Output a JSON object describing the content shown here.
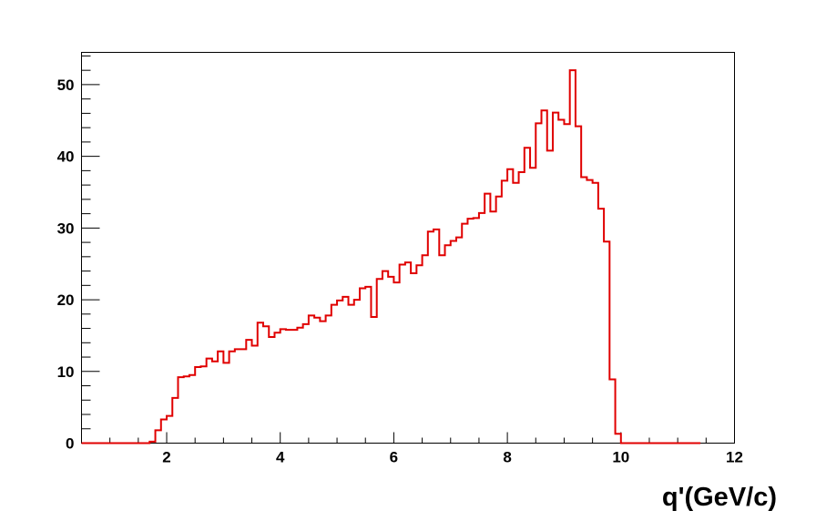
{
  "chart_data": {
    "type": "histogram",
    "xlabel": "q'(GeV/c)",
    "ylabel": "",
    "title": "",
    "xlim": [
      0.5,
      12
    ],
    "ylim": [
      0,
      54.5
    ],
    "grid": false,
    "series_color": "#e00000",
    "x_ticks": [
      2,
      4,
      6,
      8,
      10,
      12
    ],
    "y_ticks": [
      0,
      10,
      20,
      30,
      40,
      50
    ],
    "bin_width": 0.1,
    "bins_start": 0.5,
    "values": [
      0,
      0,
      0,
      0,
      0,
      0,
      0,
      0,
      0,
      0,
      0,
      0,
      0.2,
      1.8,
      3.3,
      3.8,
      6.3,
      9.2,
      9.3,
      9.5,
      10.6,
      10.7,
      11.8,
      11.4,
      12.8,
      11.2,
      12.8,
      13.1,
      13.1,
      14.4,
      13.6,
      16.8,
      16.3,
      14.8,
      15.4,
      15.9,
      15.8,
      15.8,
      16.1,
      16.6,
      17.8,
      17.5,
      17.0,
      17.8,
      19.3,
      19.9,
      20.4,
      19.3,
      20.0,
      21.6,
      21.8,
      17.6,
      22.9,
      24.0,
      23.2,
      22.4,
      24.9,
      25.2,
      23.7,
      24.8,
      26.2,
      29.5,
      29.8,
      26.2,
      27.6,
      28.2,
      28.7,
      30.6,
      31.3,
      31.4,
      32.1,
      34.8,
      32.3,
      34.4,
      36.6,
      38.2,
      36.3,
      37.8,
      41.2,
      38.4,
      44.6,
      46.4,
      40.8,
      46.1,
      45.1,
      44.5,
      52.0,
      44.2,
      37.1,
      36.7,
      36.3,
      32.7,
      28.1,
      8.9,
      1.3,
      0,
      0,
      0,
      0,
      0,
      0,
      0,
      0,
      0,
      0,
      0,
      0,
      0,
      0
    ]
  }
}
